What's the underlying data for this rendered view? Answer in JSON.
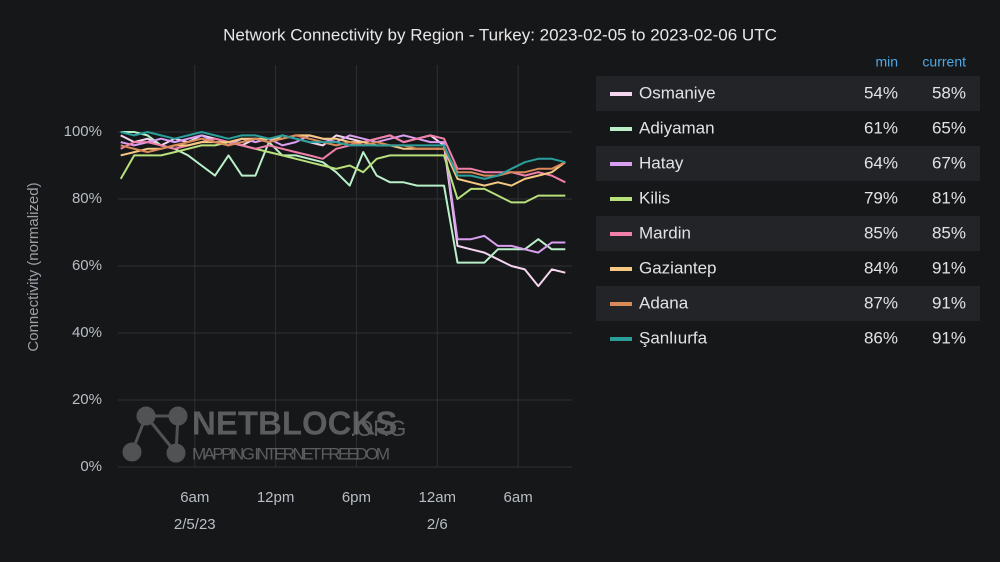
{
  "chart_data": {
    "type": "line",
    "title": "Network Connectivity by Region - Turkey: 2023-02-05 to 2023-02-06 UTC",
    "y_label": "Connectivity (normalized)",
    "x": [
      0.5,
      1.5,
      2.5,
      3.5,
      4.5,
      5.5,
      6.5,
      7.5,
      8.5,
      9.5,
      10.5,
      11.5,
      12.5,
      13.5,
      14.5,
      15.5,
      16.5,
      17.5,
      18.5,
      19.5,
      20.5,
      21.5,
      22.5,
      23.5,
      24.5,
      25.5,
      26.5,
      27.5,
      28.5,
      29.5,
      30.5,
      31.5,
      32.5,
      33.5
    ],
    "xlim": [
      0.3,
      34
    ],
    "xticks": [
      {
        "value": 6,
        "label": "6am",
        "sublabel": "2/5/23"
      },
      {
        "value": 12,
        "label": "12pm"
      },
      {
        "value": 18,
        "label": "6pm"
      },
      {
        "value": 24,
        "label": "12am",
        "sublabel": "2/6"
      },
      {
        "value": 30,
        "label": "6am"
      }
    ],
    "ylim": [
      0,
      120
    ],
    "yticks": [
      {
        "value": 0,
        "label": "0%"
      },
      {
        "value": 20,
        "label": "20%"
      },
      {
        "value": 40,
        "label": "40%"
      },
      {
        "value": 60,
        "label": "60%"
      },
      {
        "value": 80,
        "label": "80%"
      },
      {
        "value": 100,
        "label": "100%"
      }
    ],
    "grid": true,
    "legend_columns": [
      "min",
      "current"
    ],
    "series": [
      {
        "name": "Osmaniye",
        "color": "#f4d6f0",
        "min": {
          "value": 54,
          "label": "54%"
        },
        "current": {
          "value": 58,
          "label": "58%"
        },
        "values": [
          99,
          97,
          98,
          96,
          98,
          97,
          99,
          98,
          97,
          96,
          98,
          97,
          99,
          98,
          97,
          96,
          99,
          98,
          97,
          98,
          99,
          97,
          98,
          99,
          96,
          66,
          65,
          64,
          62,
          60,
          59,
          54,
          59,
          58
        ]
      },
      {
        "name": "Adiyaman",
        "color": "#b9f0c9",
        "min": {
          "value": 61,
          "label": "61%"
        },
        "current": {
          "value": 65,
          "label": "65%"
        },
        "values": [
          100,
          100,
          99,
          96,
          95,
          93,
          90,
          87,
          93,
          87,
          87,
          97,
          93,
          93,
          92,
          91,
          88,
          84,
          94,
          87,
          85,
          85,
          84,
          84,
          84,
          61,
          61,
          61,
          65,
          65,
          65,
          68,
          65,
          65
        ]
      },
      {
        "name": "Hatay",
        "color": "#d99ff0",
        "min": {
          "value": 64,
          "label": "64%"
        },
        "current": {
          "value": 67,
          "label": "67%"
        },
        "values": [
          97,
          96,
          97,
          98,
          97,
          98,
          99,
          97,
          96,
          98,
          97,
          98,
          96,
          97,
          99,
          98,
          97,
          99,
          98,
          97,
          98,
          99,
          98,
          97,
          97,
          68,
          68,
          69,
          66,
          66,
          65,
          64,
          67,
          67
        ]
      },
      {
        "name": "Kilis",
        "color": "#b8e07b",
        "min": {
          "value": 79,
          "label": "79%"
        },
        "current": {
          "value": 81,
          "label": "81%"
        },
        "values": [
          86,
          93,
          93,
          93,
          94,
          95,
          96,
          96,
          97,
          96,
          95,
          94,
          93,
          92,
          91,
          90,
          89,
          90,
          88,
          92,
          93,
          93,
          93,
          93,
          93,
          80,
          83,
          83,
          81,
          79,
          79,
          81,
          81,
          81
        ]
      },
      {
        "name": "Mardin",
        "color": "#f07fa9",
        "min": {
          "value": 85,
          "label": "85%"
        },
        "current": {
          "value": 85,
          "label": "85%"
        },
        "values": [
          95,
          97,
          97,
          96,
          95,
          96,
          97,
          98,
          97,
          96,
          95,
          96,
          95,
          94,
          93,
          92,
          95,
          96,
          97,
          98,
          99,
          97,
          98,
          99,
          98,
          89,
          89,
          88,
          88,
          88,
          87,
          88,
          87,
          85
        ]
      },
      {
        "name": "Gaziantep",
        "color": "#f6c982",
        "min": {
          "value": 84,
          "label": "84%"
        },
        "current": {
          "value": 91,
          "label": "91%"
        },
        "values": [
          93,
          94,
          95,
          95,
          96,
          96,
          97,
          97,
          97,
          98,
          98,
          98,
          98,
          99,
          99,
          98,
          98,
          97,
          97,
          96,
          96,
          95,
          95,
          95,
          95,
          86,
          85,
          84,
          85,
          84,
          86,
          87,
          88,
          91
        ]
      },
      {
        "name": "Adana",
        "color": "#d98a59",
        "min": {
          "value": 87,
          "label": "87%"
        },
        "current": {
          "value": 91,
          "label": "91%"
        },
        "values": [
          96,
          95,
          94,
          95,
          96,
          97,
          98,
          97,
          96,
          97,
          98,
          97,
          98,
          99,
          98,
          97,
          96,
          97,
          96,
          97,
          96,
          96,
          95,
          95,
          95,
          88,
          88,
          87,
          87,
          88,
          88,
          89,
          89,
          91
        ]
      },
      {
        "name": "Şanlıurfa",
        "color": "#2a9e9b",
        "min": {
          "value": 86,
          "label": "86%"
        },
        "current": {
          "value": 91,
          "label": "91%"
        },
        "values": [
          100,
          99,
          100,
          99,
          98,
          99,
          100,
          99,
          98,
          99,
          99,
          98,
          99,
          98,
          97,
          97,
          97,
          96,
          96,
          96,
          96,
          96,
          96,
          96,
          96,
          87,
          87,
          86,
          87,
          89,
          91,
          92,
          92,
          91
        ]
      }
    ],
    "watermark": {
      "title": "NETBLOCKS",
      "suffix": ".ORG",
      "tagline": "MAPPING INTERNET FREEDOM"
    }
  }
}
